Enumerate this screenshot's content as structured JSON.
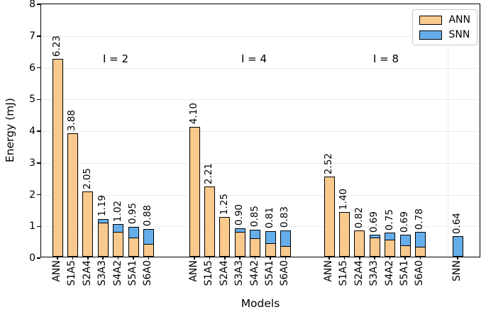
{
  "chart_data": {
    "type": "bar",
    "stacked": true,
    "title": "",
    "xlabel": "Models",
    "ylabel": "Energy (mJ)",
    "ylim": [
      0,
      8
    ],
    "y_ticks": [
      0,
      1,
      2,
      3,
      4,
      5,
      6,
      7,
      8
    ],
    "grid": {
      "horizontal": true,
      "color": "#ececec"
    },
    "legend": {
      "position": "upper right",
      "entries": [
        {
          "label": "ANN",
          "color": "#F9C98E"
        },
        {
          "label": "SNN",
          "color": "#66AEEA"
        }
      ]
    },
    "groups": [
      {
        "annotation": "I = 2",
        "bars": [
          {
            "model": "ANN",
            "label": "6.23",
            "total": 6.23,
            "ann": 6.23,
            "snn": 0
          },
          {
            "model": "S1A5",
            "label": "3.88",
            "total": 3.88,
            "ann": 3.88,
            "snn": 0
          },
          {
            "model": "S2A4",
            "label": "2.05",
            "total": 2.05,
            "ann": 2.05,
            "snn": 0
          },
          {
            "model": "S3A3",
            "label": "1.19",
            "total": 1.19,
            "ann": 1.05,
            "snn": 0.14
          },
          {
            "model": "S4A2",
            "label": "1.02",
            "total": 1.02,
            "ann": 0.75,
            "snn": 0.27
          },
          {
            "model": "S5A1",
            "label": "0.95",
            "total": 0.95,
            "ann": 0.57,
            "snn": 0.38
          },
          {
            "model": "S6A0",
            "label": "0.88",
            "total": 0.88,
            "ann": 0.38,
            "snn": 0.5
          }
        ]
      },
      {
        "annotation": "I = 4",
        "bars": [
          {
            "model": "ANN",
            "label": "4.10",
            "total": 4.1,
            "ann": 4.1,
            "snn": 0
          },
          {
            "model": "S1A5",
            "label": "2.21",
            "total": 2.21,
            "ann": 2.21,
            "snn": 0
          },
          {
            "model": "S2A4",
            "label": "1.25",
            "total": 1.25,
            "ann": 1.25,
            "snn": 0
          },
          {
            "model": "S3A3",
            "label": "0.90",
            "total": 0.9,
            "ann": 0.74,
            "snn": 0.16
          },
          {
            "model": "S4A2",
            "label": "0.85",
            "total": 0.85,
            "ann": 0.55,
            "snn": 0.3
          },
          {
            "model": "S5A1",
            "label": "0.81",
            "total": 0.81,
            "ann": 0.4,
            "snn": 0.41
          },
          {
            "model": "S6A0",
            "label": "0.83",
            "total": 0.83,
            "ann": 0.31,
            "snn": 0.52
          }
        ]
      },
      {
        "annotation": "I = 8",
        "bars": [
          {
            "model": "ANN",
            "label": "2.52",
            "total": 2.52,
            "ann": 2.52,
            "snn": 0
          },
          {
            "model": "S1A5",
            "label": "1.40",
            "total": 1.4,
            "ann": 1.4,
            "snn": 0
          },
          {
            "model": "S2A4",
            "label": "0.82",
            "total": 0.82,
            "ann": 0.82,
            "snn": 0
          },
          {
            "model": "S3A3",
            "label": "0.69",
            "total": 0.69,
            "ann": 0.57,
            "snn": 0.12
          },
          {
            "model": "S4A2",
            "label": "0.75",
            "total": 0.75,
            "ann": 0.5,
            "snn": 0.25
          },
          {
            "model": "S5A1",
            "label": "0.69",
            "total": 0.69,
            "ann": 0.33,
            "snn": 0.36
          },
          {
            "model": "S6A0",
            "label": "0.78",
            "total": 0.78,
            "ann": 0.27,
            "snn": 0.51
          }
        ]
      },
      {
        "annotation": "",
        "bars": [
          {
            "model": "SNN",
            "label": "0.64",
            "total": 0.64,
            "ann": 0,
            "snn": 0.64
          }
        ]
      }
    ]
  },
  "colors": {
    "ann_fill": "#F9C98E",
    "snn_fill": "#66AEEA",
    "bar_edge": "#000000",
    "grid": "#ececec"
  }
}
